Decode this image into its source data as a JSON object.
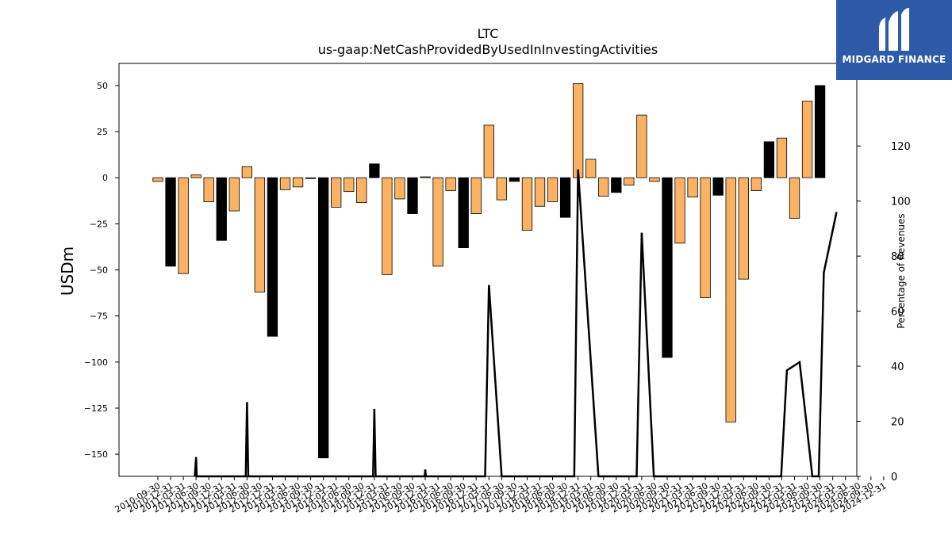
{
  "chart_data": {
    "type": "bar",
    "title": "LTC",
    "subtitle": "us-gaap:NetCashProvidedByUsedInInvestingActivities",
    "ylabel": "USDm",
    "y2label": "Percentage of Revenues",
    "ylim": [
      -162,
      62
    ],
    "y2lim": [
      0,
      150
    ],
    "yticks": [
      50,
      25,
      0,
      -25,
      -50,
      -75,
      -100,
      -125,
      -150
    ],
    "y2ticks": [
      120,
      100,
      80,
      60,
      40,
      20,
      0
    ],
    "colors": {
      "annual": "#000000",
      "quarter": "#fbb363",
      "line": "#000000"
    },
    "x_tick_labels": [
      "2010-09-30",
      "2010-12-31",
      "2011-03-31",
      "2011-06-30",
      "2011-09-30",
      "2011-12-31",
      "2012-03-31",
      "2012-06-30",
      "2012-09-30",
      "2012-12-31",
      "2013-03-31",
      "2013-06-30",
      "2013-09-30",
      "2013-12-31",
      "2014-03-31",
      "2014-06-30",
      "2014-09-30",
      "2014-12-31",
      "2015-03-31",
      "2015-06-30",
      "2015-09-30",
      "2015-12-31",
      "2016-03-31",
      "2016-06-30",
      "2016-09-30",
      "2016-12-31",
      "2017-03-31",
      "2017-06-30",
      "2017-09-30",
      "2017-12-31",
      "2018-03-31",
      "2018-06-30",
      "2018-09-30",
      "2018-12-31",
      "2019-03-31",
      "2019-06-30",
      "2019-09-30",
      "2019-12-31",
      "2020-03-31",
      "2020-06-30",
      "2020-09-30",
      "2020-12-31",
      "2021-03-31",
      "2021-06-30",
      "2021-09-30",
      "2021-12-31",
      "2022-03-31",
      "2022-06-30",
      "2022-09-30",
      "2022-12-31",
      "2023-03-31",
      "2023-06-30",
      "2023-09-30",
      "2023-12-31",
      "2024-03-31",
      "2024-06-30",
      "2024-09-30",
      "2024-12-31"
    ],
    "bars": [
      {
        "x": "2010-09-30",
        "value": -2,
        "annual": false
      },
      {
        "x": "2010-12-31",
        "value": -48,
        "annual": true
      },
      {
        "x": "2011-03-31",
        "value": -52,
        "annual": false
      },
      {
        "x": "2011-06-30",
        "value": 1.5,
        "annual": false
      },
      {
        "x": "2011-09-30",
        "value": -13,
        "annual": false
      },
      {
        "x": "2011-12-31",
        "value": -34,
        "annual": true
      },
      {
        "x": "2012-03-31",
        "value": -18,
        "annual": false
      },
      {
        "x": "2012-06-30",
        "value": 6,
        "annual": false
      },
      {
        "x": "2012-09-30",
        "value": -62,
        "annual": false
      },
      {
        "x": "2012-12-31",
        "value": -86,
        "annual": true
      },
      {
        "x": "2013-03-31",
        "value": -6.5,
        "annual": false
      },
      {
        "x": "2013-06-30",
        "value": -5,
        "annual": false
      },
      {
        "x": "2013-09-30",
        "value": -0.5,
        "annual": false
      },
      {
        "x": "2013-12-31",
        "value": -152,
        "annual": true
      },
      {
        "x": "2014-03-31",
        "value": -16,
        "annual": false
      },
      {
        "x": "2014-06-30",
        "value": -7.5,
        "annual": false
      },
      {
        "x": "2014-09-30",
        "value": -13.5,
        "annual": false
      },
      {
        "x": "2014-12-31",
        "value": 7.5,
        "annual": true
      },
      {
        "x": "2015-03-31",
        "value": -52.5,
        "annual": false
      },
      {
        "x": "2015-06-30",
        "value": -11.5,
        "annual": false
      },
      {
        "x": "2015-09-30",
        "value": -19.5,
        "annual": true
      },
      {
        "x": "2015-12-31",
        "value": 0.5,
        "annual": false
      },
      {
        "x": "2016-03-31",
        "value": -48,
        "annual": false
      },
      {
        "x": "2016-06-30",
        "value": -7,
        "annual": false
      },
      {
        "x": "2016-09-30",
        "value": -38,
        "annual": true
      },
      {
        "x": "2016-12-31",
        "value": -19.5,
        "annual": false
      },
      {
        "x": "2017-03-31",
        "value": 28.5,
        "annual": false
      },
      {
        "x": "2017-06-30",
        "value": -12,
        "annual": false
      },
      {
        "x": "2017-09-30",
        "value": -2,
        "annual": true
      },
      {
        "x": "2017-12-31",
        "value": -28.5,
        "annual": false
      },
      {
        "x": "2018-03-31",
        "value": -15.5,
        "annual": false
      },
      {
        "x": "2018-06-30",
        "value": -13,
        "annual": false
      },
      {
        "x": "2018-09-30",
        "value": -21.5,
        "annual": true
      },
      {
        "x": "2018-12-31",
        "value": 51,
        "annual": false
      },
      {
        "x": "2019-03-31",
        "value": 10,
        "annual": false
      },
      {
        "x": "2019-06-30",
        "value": -10,
        "annual": false
      },
      {
        "x": "2019-09-30",
        "value": -8,
        "annual": true
      },
      {
        "x": "2019-12-31",
        "value": -4,
        "annual": false
      },
      {
        "x": "2020-03-31",
        "value": 34,
        "annual": false
      },
      {
        "x": "2020-06-30",
        "value": -2,
        "annual": false
      },
      {
        "x": "2020-09-30",
        "value": -97.5,
        "annual": true
      },
      {
        "x": "2020-12-31",
        "value": -35.5,
        "annual": false
      },
      {
        "x": "2021-03-31",
        "value": -10.5,
        "annual": false
      },
      {
        "x": "2021-06-30",
        "value": -65,
        "annual": false
      },
      {
        "x": "2021-09-30",
        "value": -9.5,
        "annual": true
      },
      {
        "x": "2021-12-31",
        "value": -132.5,
        "annual": false
      },
      {
        "x": "2022-03-31",
        "value": -55,
        "annual": false
      },
      {
        "x": "2022-06-30",
        "value": -7,
        "annual": false
      },
      {
        "x": "2022-09-30",
        "value": 19.5,
        "annual": true
      },
      {
        "x": "2022-12-31",
        "value": 21.5,
        "annual": false
      },
      {
        "x": "2023-03-31",
        "value": -22,
        "annual": false
      },
      {
        "x": "2023-06-30",
        "value": 41.5,
        "annual": false
      },
      {
        "x": "2023-09-30",
        "value": 50,
        "annual": true
      }
    ],
    "line": [
      {
        "x": 2.9,
        "y": 0
      },
      {
        "x": 3.0,
        "y": 7
      },
      {
        "x": 3.05,
        "y": 0
      },
      {
        "x": 6.9,
        "y": 0
      },
      {
        "x": 7.0,
        "y": 27
      },
      {
        "x": 7.1,
        "y": 0
      },
      {
        "x": 16.9,
        "y": 0
      },
      {
        "x": 17.0,
        "y": 24.5
      },
      {
        "x": 17.1,
        "y": 0
      },
      {
        "x": 20.95,
        "y": 0
      },
      {
        "x": 21.0,
        "y": 2.5
      },
      {
        "x": 21.05,
        "y": 0
      },
      {
        "x": 25.7,
        "y": 0
      },
      {
        "x": 26.0,
        "y": 69.5
      },
      {
        "x": 27.0,
        "y": 0
      },
      {
        "x": 32.7,
        "y": 0
      },
      {
        "x": 33.0,
        "y": 111.5
      },
      {
        "x": 34.6,
        "y": 0
      },
      {
        "x": 37.6,
        "y": 0
      },
      {
        "x": 38.0,
        "y": 88.5
      },
      {
        "x": 38.95,
        "y": 0
      },
      {
        "x": 48.95,
        "y": 0
      },
      {
        "x": 49.4,
        "y": 38.5
      },
      {
        "x": 50.4,
        "y": 41.5
      },
      {
        "x": 51.4,
        "y": 0
      },
      {
        "x": 51.9,
        "y": 0
      },
      {
        "x": 52.3,
        "y": 74
      },
      {
        "x": 53.3,
        "y": 96
      }
    ]
  },
  "logo": {
    "text": "MIDGARD FINANCE"
  }
}
